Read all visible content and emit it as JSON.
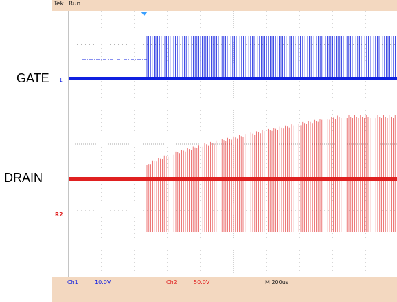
{
  "header": {
    "brand": "Tek",
    "status": "Run"
  },
  "labels": {
    "gate": "GATE",
    "drain": "DRAIN",
    "ch1_marker": "1",
    "ch2_marker": "R2"
  },
  "footer": {
    "ch1_label": "Ch1",
    "ch1_scale": "10.0V",
    "ch2_label": "Ch2",
    "ch2_scale": "50.0V",
    "timebase": "M 200us"
  },
  "colors": {
    "ch1": "#1020e0",
    "ch2": "#e02020",
    "grid": "#9a9a9a",
    "bar": "#f3d8c0"
  }
}
